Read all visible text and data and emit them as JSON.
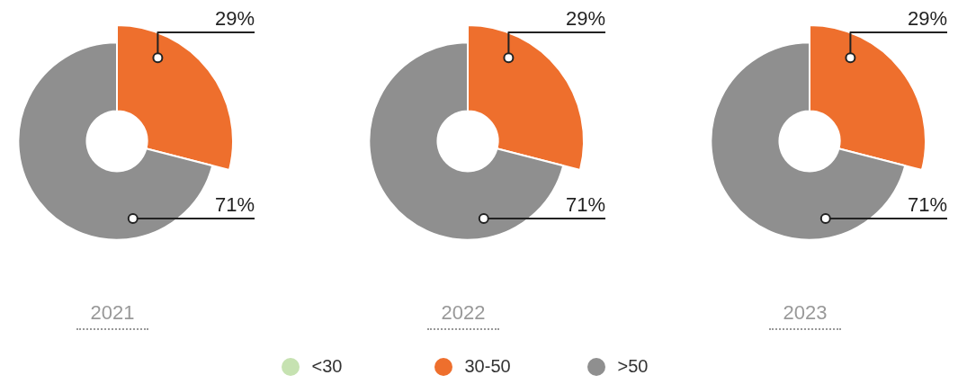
{
  "chart_data": [
    {
      "type": "donut",
      "title": "2021",
      "categories": [
        null,
        null,
        null
      ],
      "values": [
        0,
        29,
        71
      ],
      "colors": [
        "#c6e2b1",
        "#ee6f2d",
        "#8f8f8f"
      ],
      "value_labels": [
        null,
        "29%",
        "71%"
      ]
    },
    {
      "type": "donut",
      "title": "2022",
      "categories": [
        "<30",
        "30-50",
        ">50"
      ],
      "values": [
        0,
        29,
        71
      ],
      "colors": [
        "#c6e2b1",
        "#ee6f2d",
        "#8f8f8f"
      ],
      "value_labels": [
        null,
        "29%",
        "71%"
      ],
      "legend": "bottom"
    },
    {
      "type": "donut",
      "title": "2023",
      "categories": [
        null,
        null,
        null
      ],
      "values": [
        0,
        29,
        71
      ],
      "colors": [
        "#c6e2b1",
        "#ee6f2d",
        "#8f8f8f"
      ],
      "value_labels": [
        null,
        "29%",
        "71%"
      ]
    }
  ]
}
